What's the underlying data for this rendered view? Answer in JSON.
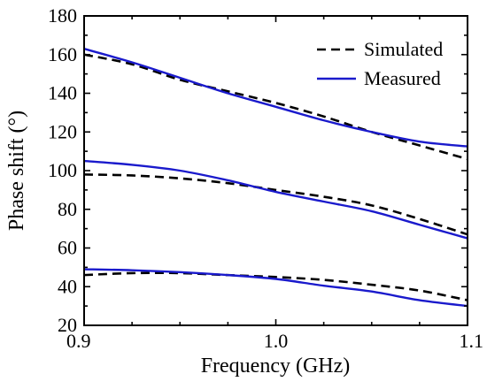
{
  "chart_data": {
    "type": "line",
    "xlabel": "Frequency (GHz)",
    "ylabel": "Phase shift (°)",
    "xlim": [
      0.9,
      1.1
    ],
    "ylim": [
      20,
      180
    ],
    "x_ticks": [
      "0.9",
      "1.0",
      "1.1"
    ],
    "y_ticks": [
      "20",
      "40",
      "60",
      "80",
      "100",
      "120",
      "140",
      "160",
      "180"
    ],
    "legend": {
      "position": "top-right"
    },
    "grid": false,
    "series_styles": {
      "Simulated": {
        "color": "#000000",
        "dash": "dashed"
      },
      "Measured": {
        "color": "#1a1acc",
        "dash": "solid"
      }
    },
    "series": [
      {
        "name": "Simulated",
        "group": 1,
        "x": [
          0.9,
          0.925,
          0.95,
          0.975,
          1.0,
          1.025,
          1.05,
          1.075,
          1.1
        ],
        "y": [
          160,
          155,
          147,
          141,
          135,
          128,
          120,
          113,
          106
        ]
      },
      {
        "name": "Measured",
        "group": 1,
        "x": [
          0.9,
          0.925,
          0.95,
          0.975,
          1.0,
          1.025,
          1.05,
          1.075,
          1.1
        ],
        "y": [
          163,
          156,
          148,
          140,
          133,
          126,
          120,
          115,
          112.5
        ]
      },
      {
        "name": "Simulated",
        "group": 2,
        "x": [
          0.9,
          0.925,
          0.95,
          0.975,
          1.0,
          1.025,
          1.05,
          1.075,
          1.1
        ],
        "y": [
          98,
          97.5,
          96,
          93.5,
          90,
          86.5,
          82,
          75,
          67
        ]
      },
      {
        "name": "Measured",
        "group": 2,
        "x": [
          0.9,
          0.925,
          0.95,
          0.975,
          1.0,
          1.025,
          1.05,
          1.075,
          1.1
        ],
        "y": [
          105,
          103,
          100,
          95,
          89,
          84,
          79,
          72,
          65
        ]
      },
      {
        "name": "Simulated",
        "group": 3,
        "x": [
          0.9,
          0.925,
          0.95,
          0.975,
          1.0,
          1.025,
          1.05,
          1.075,
          1.1
        ],
        "y": [
          46,
          47,
          47,
          46,
          45,
          43.5,
          41,
          38,
          33
        ]
      },
      {
        "name": "Measured",
        "group": 3,
        "x": [
          0.9,
          0.925,
          0.95,
          0.975,
          1.0,
          1.025,
          1.05,
          1.075,
          1.1
        ],
        "y": [
          49,
          48.5,
          47.5,
          46,
          44,
          40.5,
          37.5,
          33,
          30
        ]
      }
    ]
  }
}
